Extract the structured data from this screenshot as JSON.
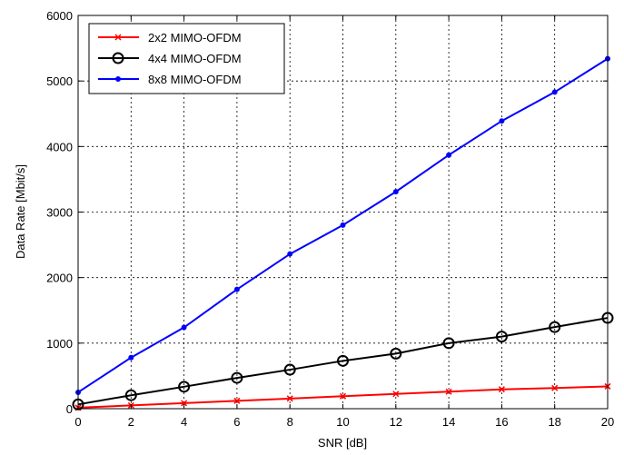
{
  "chart_data": {
    "type": "line",
    "title": "",
    "xlabel": "SNR [dB]",
    "ylabel": "Data Rate [Mbit/s]",
    "xlim": [
      0,
      20
    ],
    "ylim": [
      0,
      6000
    ],
    "xticks": [
      0,
      2,
      4,
      6,
      8,
      10,
      12,
      14,
      16,
      18,
      20
    ],
    "yticks": [
      0,
      1000,
      2000,
      3000,
      4000,
      5000,
      6000
    ],
    "grid": true,
    "legend_position": "top-left",
    "x": [
      0,
      2,
      4,
      6,
      8,
      10,
      12,
      14,
      16,
      18,
      20
    ],
    "series": [
      {
        "name": "2x2 MIMO-OFDM",
        "color": "#ff0000",
        "marker": "x-mark",
        "values": [
          15,
          50,
          85,
          120,
          155,
          190,
          225,
          260,
          295,
          315,
          340
        ]
      },
      {
        "name": "4x4 MIMO-OFDM",
        "color": "#000000",
        "marker": "circle",
        "values": [
          65,
          205,
          335,
          470,
          595,
          730,
          840,
          1000,
          1100,
          1245,
          1385
        ]
      },
      {
        "name": "8x8 MIMO-OFDM",
        "color": "#0000ff",
        "marker": "dot",
        "values": [
          250,
          780,
          1240,
          1820,
          2360,
          2800,
          3310,
          3870,
          4390,
          4830,
          5340
        ]
      }
    ]
  }
}
